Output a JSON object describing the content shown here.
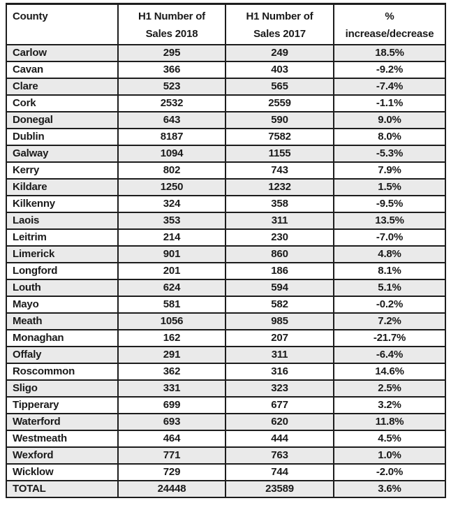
{
  "colors": {
    "border": "#1d1d1d",
    "text": "#1a1a1a",
    "row_alt_bg": "#eaeaea",
    "background": "#ffffff"
  },
  "table": {
    "headers": [
      {
        "line1": "County",
        "line2": ""
      },
      {
        "line1": "H1 Number of",
        "line2": "Sales 2018"
      },
      {
        "line1": "H1 Number of",
        "line2": "Sales 2017"
      },
      {
        "line1": "%",
        "line2": "increase/decrease"
      }
    ],
    "rows": [
      {
        "county": "Carlow",
        "sales2018": "295",
        "sales2017": "249",
        "change": "18.5%"
      },
      {
        "county": "Cavan",
        "sales2018": "366",
        "sales2017": "403",
        "change": "-9.2%"
      },
      {
        "county": "Clare",
        "sales2018": "523",
        "sales2017": "565",
        "change": "-7.4%"
      },
      {
        "county": "Cork",
        "sales2018": "2532",
        "sales2017": "2559",
        "change": "-1.1%"
      },
      {
        "county": "Donegal",
        "sales2018": "643",
        "sales2017": "590",
        "change": "9.0%"
      },
      {
        "county": "Dublin",
        "sales2018": "8187",
        "sales2017": "7582",
        "change": "8.0%"
      },
      {
        "county": "Galway",
        "sales2018": "1094",
        "sales2017": "1155",
        "change": "-5.3%"
      },
      {
        "county": "Kerry",
        "sales2018": "802",
        "sales2017": "743",
        "change": "7.9%"
      },
      {
        "county": "Kildare",
        "sales2018": "1250",
        "sales2017": "1232",
        "change": "1.5%"
      },
      {
        "county": "Kilkenny",
        "sales2018": "324",
        "sales2017": "358",
        "change": "-9.5%"
      },
      {
        "county": "Laois",
        "sales2018": "353",
        "sales2017": "311",
        "change": "13.5%"
      },
      {
        "county": "Leitrim",
        "sales2018": "214",
        "sales2017": "230",
        "change": "-7.0%"
      },
      {
        "county": "Limerick",
        "sales2018": "901",
        "sales2017": "860",
        "change": "4.8%"
      },
      {
        "county": "Longford",
        "sales2018": "201",
        "sales2017": "186",
        "change": "8.1%"
      },
      {
        "county": "Louth",
        "sales2018": "624",
        "sales2017": "594",
        "change": "5.1%"
      },
      {
        "county": "Mayo",
        "sales2018": "581",
        "sales2017": "582",
        "change": "-0.2%"
      },
      {
        "county": "Meath",
        "sales2018": "1056",
        "sales2017": "985",
        "change": "7.2%"
      },
      {
        "county": "Monaghan",
        "sales2018": "162",
        "sales2017": "207",
        "change": "-21.7%"
      },
      {
        "county": "Offaly",
        "sales2018": "291",
        "sales2017": "311",
        "change": "-6.4%"
      },
      {
        "county": "Roscommon",
        "sales2018": "362",
        "sales2017": "316",
        "change": "14.6%"
      },
      {
        "county": "Sligo",
        "sales2018": "331",
        "sales2017": "323",
        "change": "2.5%"
      },
      {
        "county": "Tipperary",
        "sales2018": "699",
        "sales2017": "677",
        "change": "3.2%"
      },
      {
        "county": "Waterford",
        "sales2018": "693",
        "sales2017": "620",
        "change": "11.8%"
      },
      {
        "county": "Westmeath",
        "sales2018": "464",
        "sales2017": "444",
        "change": "4.5%"
      },
      {
        "county": "Wexford",
        "sales2018": "771",
        "sales2017": "763",
        "change": "1.0%"
      },
      {
        "county": "Wicklow",
        "sales2018": "729",
        "sales2017": "744",
        "change": "-2.0%"
      },
      {
        "county": "TOTAL",
        "sales2018": "24448",
        "sales2017": "23589",
        "change": "3.6%"
      }
    ]
  },
  "chart_data": {
    "type": "table",
    "title": "",
    "columns": [
      "County",
      "H1 Number of Sales 2018",
      "H1 Number of Sales 2017",
      "% increase/decrease"
    ],
    "rows": [
      [
        "Carlow",
        295,
        249,
        "18.5%"
      ],
      [
        "Cavan",
        366,
        403,
        "-9.2%"
      ],
      [
        "Clare",
        523,
        565,
        "-7.4%"
      ],
      [
        "Cork",
        2532,
        2559,
        "-1.1%"
      ],
      [
        "Donegal",
        643,
        590,
        "9.0%"
      ],
      [
        "Dublin",
        8187,
        7582,
        "8.0%"
      ],
      [
        "Galway",
        1094,
        1155,
        "-5.3%"
      ],
      [
        "Kerry",
        802,
        743,
        "7.9%"
      ],
      [
        "Kildare",
        1250,
        1232,
        "1.5%"
      ],
      [
        "Kilkenny",
        324,
        358,
        "-9.5%"
      ],
      [
        "Laois",
        353,
        311,
        "13.5%"
      ],
      [
        "Leitrim",
        214,
        230,
        "-7.0%"
      ],
      [
        "Limerick",
        901,
        860,
        "4.8%"
      ],
      [
        "Longford",
        201,
        186,
        "8.1%"
      ],
      [
        "Louth",
        624,
        594,
        "5.1%"
      ],
      [
        "Mayo",
        581,
        582,
        "-0.2%"
      ],
      [
        "Meath",
        1056,
        985,
        "7.2%"
      ],
      [
        "Monaghan",
        162,
        207,
        "-21.7%"
      ],
      [
        "Offaly",
        291,
        311,
        "-6.4%"
      ],
      [
        "Roscommon",
        362,
        316,
        "14.6%"
      ],
      [
        "Sligo",
        331,
        323,
        "2.5%"
      ],
      [
        "Tipperary",
        699,
        677,
        "3.2%"
      ],
      [
        "Waterford",
        693,
        620,
        "11.8%"
      ],
      [
        "Westmeath",
        464,
        444,
        "4.5%"
      ],
      [
        "Wexford",
        771,
        763,
        "1.0%"
      ],
      [
        "Wicklow",
        729,
        744,
        "-2.0%"
      ],
      [
        "TOTAL",
        24448,
        23589,
        "3.6%"
      ]
    ]
  }
}
